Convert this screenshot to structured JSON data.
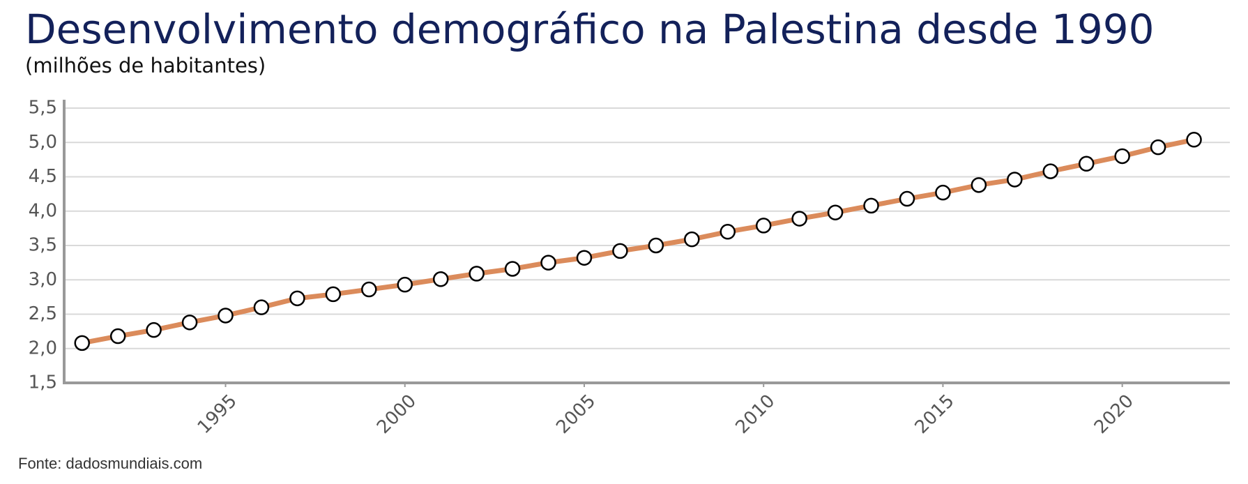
{
  "chart_data": {
    "type": "line",
    "title": "Desenvolvimento demográfico na Palestina desde 1990",
    "subtitle": "(milhões de habitantes)",
    "source": "Fonte: dadosmundiais.com",
    "x": [
      1991,
      1992,
      1993,
      1994,
      1995,
      1996,
      1997,
      1998,
      1999,
      2000,
      2001,
      2002,
      2003,
      2004,
      2005,
      2006,
      2007,
      2008,
      2009,
      2010,
      2011,
      2012,
      2013,
      2014,
      2015,
      2016,
      2017,
      2018,
      2019,
      2020,
      2021,
      2022
    ],
    "series": [
      {
        "name": "Palestina",
        "color": "#db8b5b",
        "values": [
          2.08,
          2.18,
          2.27,
          2.38,
          2.48,
          2.6,
          2.73,
          2.79,
          2.86,
          2.93,
          3.01,
          3.09,
          3.16,
          3.25,
          3.32,
          3.42,
          3.5,
          3.59,
          3.7,
          3.79,
          3.89,
          3.98,
          4.08,
          4.18,
          4.27,
          4.38,
          4.46,
          4.58,
          4.69,
          4.8,
          4.93,
          5.04
        ]
      }
    ],
    "xlim": [
      1990.5,
      2023
    ],
    "xticks": [
      1995,
      2000,
      2005,
      2010,
      2015,
      2020
    ],
    "ylim": [
      1.5,
      5.5
    ],
    "yticks": [
      {
        "value": 1.5,
        "label": "1,5"
      },
      {
        "value": 2,
        "label": "2,0"
      },
      {
        "value": 2.5,
        "label": "2,5"
      },
      {
        "value": 3,
        "label": "3,0"
      },
      {
        "value": 3.5,
        "label": "3,5"
      },
      {
        "value": 4,
        "label": "4,0"
      },
      {
        "value": 4.5,
        "label": "4,5"
      },
      {
        "value": 5,
        "label": "5,0"
      },
      {
        "value": 5.5,
        "label": "5,5"
      }
    ],
    "grid": true
  }
}
